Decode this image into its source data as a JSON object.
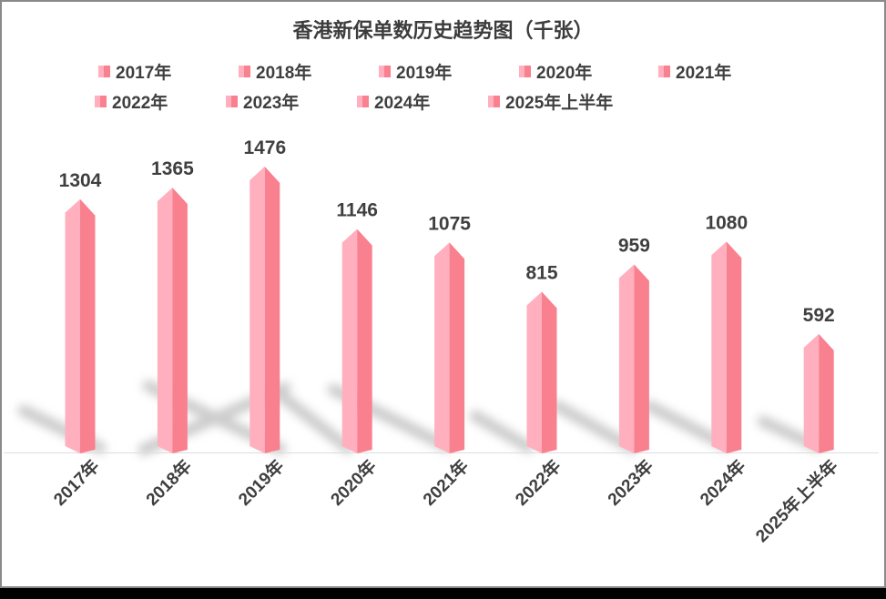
{
  "frame": {
    "outer_background": "#000000",
    "chart_background": "#ffffff",
    "border_color": "#8a8a8a"
  },
  "chart_data": {
    "type": "bar",
    "style": "3d-column-with-floor-shadows",
    "title": "香港新保单数历史趋势图（千张）",
    "categories": [
      "2017年",
      "2018年",
      "2019年",
      "2020年",
      "2021年",
      "2022年",
      "2023年",
      "2024年",
      "2025年上半年"
    ],
    "values": [
      1304,
      1365,
      1476,
      1146,
      1075,
      815,
      959,
      1080,
      592
    ],
    "legend": {
      "position": "top",
      "rows": [
        [
          "2017年",
          "2018年",
          "2019年",
          "2020年",
          "2021年"
        ],
        [
          "2022年",
          "2023年",
          "2024年",
          "2025年上半年"
        ]
      ]
    },
    "value_labels_visible": true,
    "y_axis_visible": false,
    "x_axis_label_rotation_deg": -45,
    "gridlines": false,
    "colors": {
      "bar_light": "#ffafbd",
      "bar_dark": "#f9808f",
      "value_label": "#3f3f3f",
      "axis_label": "#3f3f3f",
      "title": "#3c3c3c",
      "legend_text": "#3f3f3f",
      "shadow": "#a3a3a3",
      "floor_line": "#dedede"
    }
  }
}
